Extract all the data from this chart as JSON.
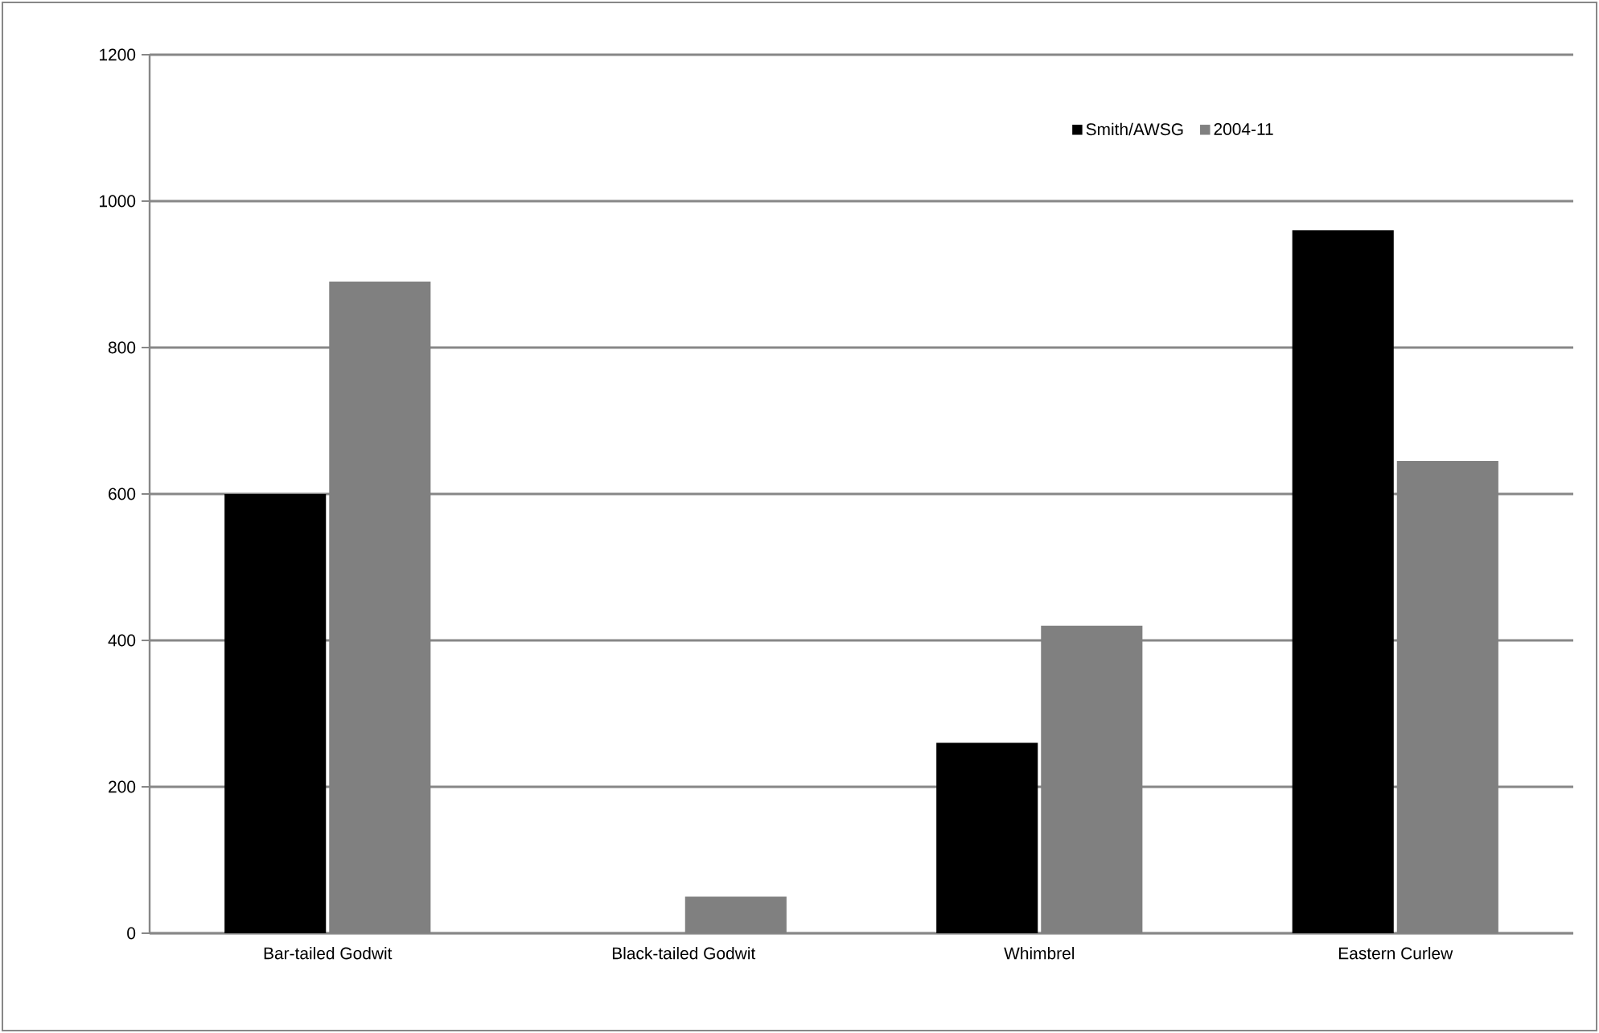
{
  "chart_data": {
    "type": "bar",
    "categories": [
      "Bar-tailed Godwit",
      "Black-tailed Godwit",
      "Whimbrel",
      "Eastern Curlew"
    ],
    "series": [
      {
        "name": "Smith/AWSG",
        "color": "#000000",
        "values": [
          600,
          0,
          260,
          960
        ]
      },
      {
        "name": "2004-11",
        "color": "#808080",
        "values": [
          890,
          50,
          420,
          645
        ]
      }
    ],
    "ylim": [
      0,
      1200
    ],
    "yticks": [
      0,
      200,
      400,
      600,
      800,
      1000,
      1200
    ],
    "grid": "y",
    "legend": "top right"
  }
}
